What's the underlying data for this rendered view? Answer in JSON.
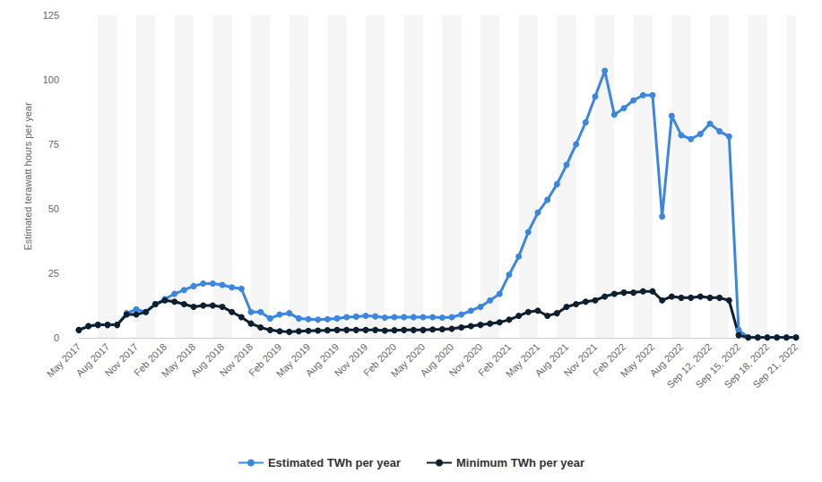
{
  "chart_data": {
    "type": "line",
    "ylabel": "Estimated terawatt hours per year",
    "categories": [
      "May 2017",
      null,
      null,
      "Aug 2017",
      null,
      null,
      "Nov 2017",
      null,
      null,
      "Feb 2018",
      null,
      null,
      "May 2018",
      null,
      null,
      "Aug 2018",
      null,
      null,
      "Nov 2018",
      null,
      null,
      "Feb 2019",
      null,
      null,
      "May 2019",
      null,
      null,
      "Aug 2019",
      null,
      null,
      "Nov 2019",
      null,
      null,
      "Feb 2020",
      null,
      null,
      "May 2020",
      null,
      null,
      "Aug 2020",
      null,
      null,
      "Nov 2020",
      null,
      null,
      "Feb 2021",
      null,
      null,
      "May 2021",
      null,
      null,
      "Aug 2021",
      null,
      null,
      "Nov 2021",
      null,
      null,
      "Feb 2022",
      null,
      null,
      "May 2022",
      null,
      null,
      "Aug 2022",
      null,
      null,
      "Sep 12, 2022",
      null,
      null,
      "Sep 15, 2022",
      null,
      null,
      "Sep 18, 2022",
      null,
      null,
      "Sep 21, 2022"
    ],
    "series": [
      {
        "name": "Estimated TWh per year",
        "color": "#3a86e0",
        "marker": "circle",
        "values": [
          3,
          4.5,
          5,
          5,
          5,
          9.5,
          11,
          10,
          13,
          15,
          17,
          18.5,
          20,
          21,
          21,
          20.5,
          19.5,
          19,
          10,
          10,
          7.5,
          9,
          9.5,
          7.5,
          7.2,
          7,
          7.2,
          7.5,
          8,
          8.2,
          8.5,
          8.3,
          7.8,
          8,
          8,
          8,
          8,
          8,
          7.8,
          8,
          9,
          10.5,
          12,
          14.5,
          17,
          24.5,
          31.5,
          41,
          48.5,
          53.5,
          59.5,
          67,
          75,
          83.5,
          93.5,
          103.5,
          86.5,
          89,
          92,
          94,
          94,
          47,
          86,
          78.5,
          77,
          79,
          83,
          80,
          78,
          3,
          0.2,
          0.2,
          0.2,
          0.2,
          0.2,
          0.2
        ]
      },
      {
        "name": "Minimum TWh per year",
        "color": "#0e1f30",
        "marker": "circle",
        "values": [
          3,
          4.5,
          5,
          5,
          5,
          9,
          9,
          10,
          13,
          14.5,
          14,
          13,
          12,
          12.5,
          12.5,
          12,
          10,
          8,
          5.5,
          4,
          3,
          2.5,
          2.3,
          2.5,
          2.7,
          2.8,
          2.9,
          3,
          3,
          3,
          3,
          3,
          2.8,
          2.9,
          3,
          3,
          3,
          3.2,
          3.3,
          3.5,
          4,
          4.5,
          5,
          5.5,
          6,
          7,
          8.5,
          10,
          10.5,
          8.5,
          9.5,
          12,
          13,
          14,
          14.5,
          16,
          17,
          17.5,
          17.5,
          18,
          18,
          14.5,
          16,
          15.5,
          15.5,
          16,
          15.5,
          15.5,
          14.5,
          1,
          0.1,
          0.1,
          0.1,
          0.1,
          0.1,
          0.1
        ]
      }
    ],
    "ylim": [
      0,
      125
    ],
    "yticks": [
      0,
      25,
      50,
      75,
      100,
      125
    ],
    "grid": true,
    "legend": "bottom"
  }
}
